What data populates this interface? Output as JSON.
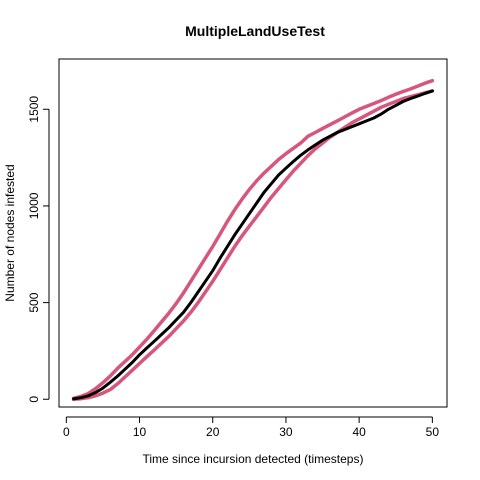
{
  "chart_data": {
    "type": "line",
    "title": "MultipleLandUseTest",
    "xlabel": "Time since incursion detected (timesteps)",
    "ylabel": "Number of nodes infested",
    "xlim": [
      -1,
      52
    ],
    "ylim": [
      -40,
      1760
    ],
    "xticks": [
      0,
      10,
      20,
      30,
      40,
      50
    ],
    "yticks": [
      0,
      500,
      1000,
      1500
    ],
    "grid": false,
    "legend": "none",
    "x": [
      1,
      2,
      3,
      4,
      5,
      6,
      7,
      8,
      9,
      10,
      11,
      12,
      13,
      14,
      15,
      16,
      17,
      18,
      19,
      20,
      21,
      22,
      23,
      24,
      25,
      26,
      27,
      28,
      29,
      30,
      31,
      32,
      33,
      34,
      35,
      36,
      37,
      38,
      39,
      40,
      41,
      42,
      43,
      44,
      45,
      46,
      47,
      48,
      49,
      50
    ],
    "series": [
      {
        "color": "#000000",
        "values": [
          2,
          8,
          18,
          35,
          58,
          88,
          120,
          155,
          190,
          230,
          265,
          300,
          335,
          370,
          410,
          450,
          500,
          555,
          610,
          665,
          730,
          790,
          850,
          905,
          960,
          1015,
          1070,
          1115,
          1160,
          1195,
          1230,
          1262,
          1290,
          1315,
          1340,
          1360,
          1380,
          1395,
          1410,
          1425,
          1440,
          1455,
          1475,
          1500,
          1520,
          1540,
          1555,
          1568,
          1582,
          1595
        ]
      },
      {
        "color": "#D6567C",
        "values": [
          5,
          15,
          30,
          55,
          85,
          120,
          160,
          195,
          230,
          270,
          310,
          355,
          400,
          445,
          495,
          550,
          610,
          670,
          730,
          790,
          855,
          920,
          980,
          1035,
          1085,
          1130,
          1170,
          1205,
          1240,
          1270,
          1298,
          1325,
          1360,
          1380,
          1400,
          1420,
          1440,
          1460,
          1480,
          1500,
          1515,
          1530,
          1545,
          1562,
          1578,
          1592,
          1605,
          1620,
          1635,
          1648
        ]
      },
      {
        "color": "#D6567C",
        "values": [
          0,
          3,
          8,
          18,
          32,
          50,
          80,
          115,
          150,
          185,
          220,
          255,
          290,
          325,
          365,
          405,
          450,
          500,
          555,
          610,
          670,
          730,
          790,
          845,
          895,
          945,
          995,
          1045,
          1090,
          1135,
          1180,
          1220,
          1260,
          1295,
          1325,
          1355,
          1380,
          1405,
          1430,
          1450,
          1470,
          1490,
          1510,
          1525,
          1540,
          1555,
          1565,
          1575,
          1585,
          1595
        ]
      }
    ]
  }
}
